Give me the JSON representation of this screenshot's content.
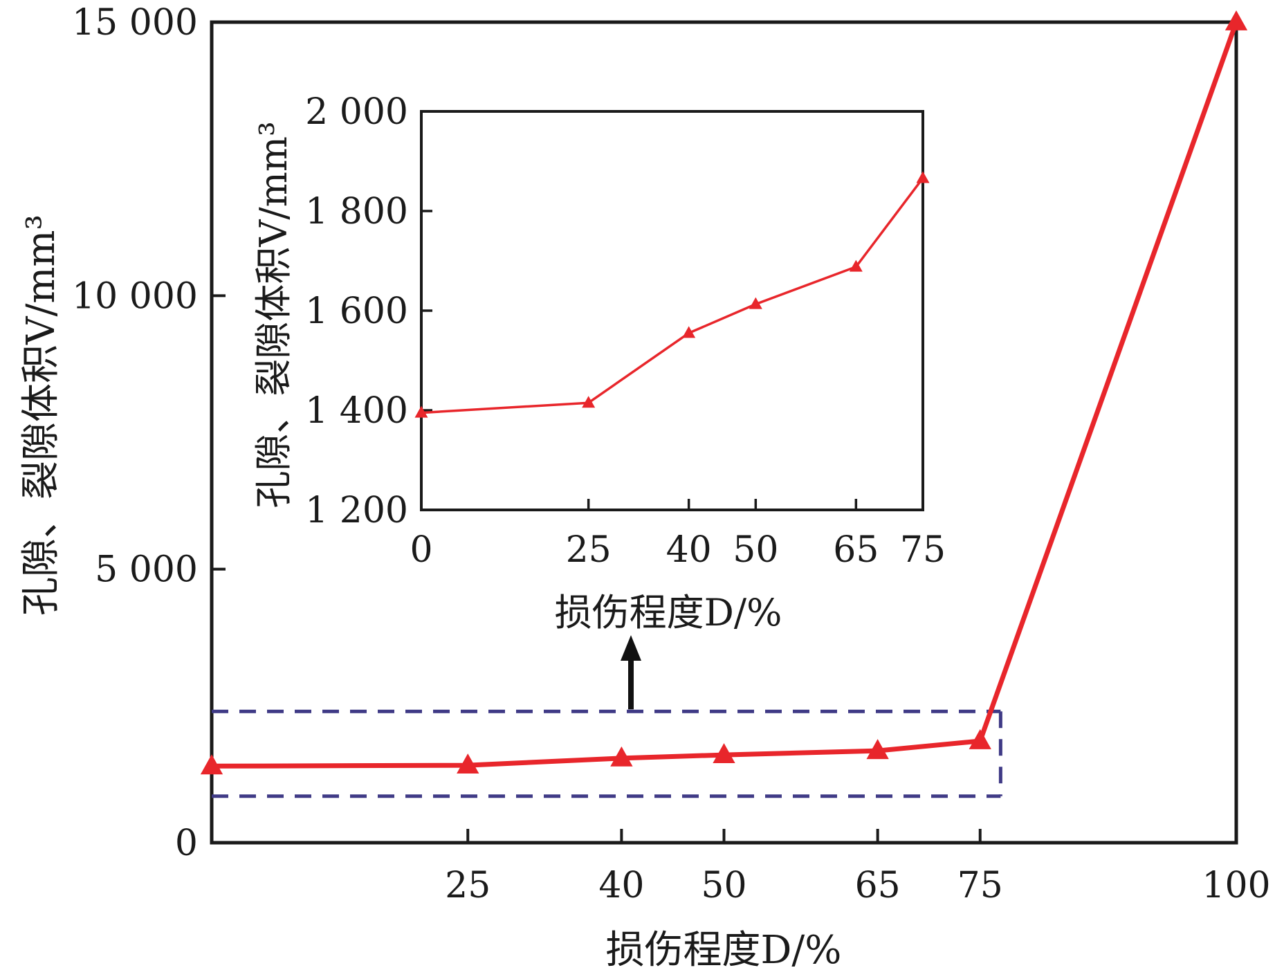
{
  "chart_data": [
    {
      "type": "line",
      "role": "main",
      "xlabel": "损伤程度D/%",
      "ylabel": "孔隙、裂隙体积V/mm³",
      "x": [
        0,
        25,
        40,
        50,
        65,
        75,
        100
      ],
      "x_ticks": [
        "25",
        "40",
        "50",
        "65",
        "75",
        "100"
      ],
      "x_tick_values": [
        25,
        40,
        50,
        65,
        75,
        100
      ],
      "xlim": [
        0,
        100
      ],
      "ylim": [
        0,
        15000
      ],
      "y_ticks": [
        "0",
        "5 000",
        "10 000",
        "15 000"
      ],
      "y_tick_values": [
        0,
        5000,
        10000,
        15000
      ],
      "series": [
        {
          "values": [
            1400,
            1415,
            1545,
            1605,
            1680,
            1860,
            15000
          ]
        }
      ],
      "grid": false,
      "colors": {
        "line": "#e8262b",
        "highlight_box": "#3f3a86",
        "arrow": "#111111"
      },
      "highlight_region": {
        "x": [
          0,
          77
        ],
        "y": [
          850,
          2400
        ]
      }
    },
    {
      "type": "line",
      "role": "inset",
      "xlabel": "损伤程度D/%",
      "ylabel": "孔隙、裂隙体积V/mm³",
      "x": [
        0,
        25,
        40,
        50,
        65,
        75
      ],
      "x_ticks": [
        "0",
        "25",
        "40",
        "50",
        "65",
        "75"
      ],
      "x_tick_values": [
        0,
        25,
        40,
        50,
        65,
        75
      ],
      "xlim": [
        0,
        75
      ],
      "ylim": [
        1200,
        2000
      ],
      "y_ticks": [
        "1 200",
        "1 400",
        "1 600",
        "1 800",
        "2 000"
      ],
      "y_tick_values": [
        1200,
        1400,
        1600,
        1800,
        2000
      ],
      "series": [
        {
          "values": [
            1395,
            1415,
            1555,
            1613,
            1688,
            1866
          ]
        }
      ],
      "grid": false,
      "colors": {
        "line": "#e8262b"
      }
    }
  ]
}
